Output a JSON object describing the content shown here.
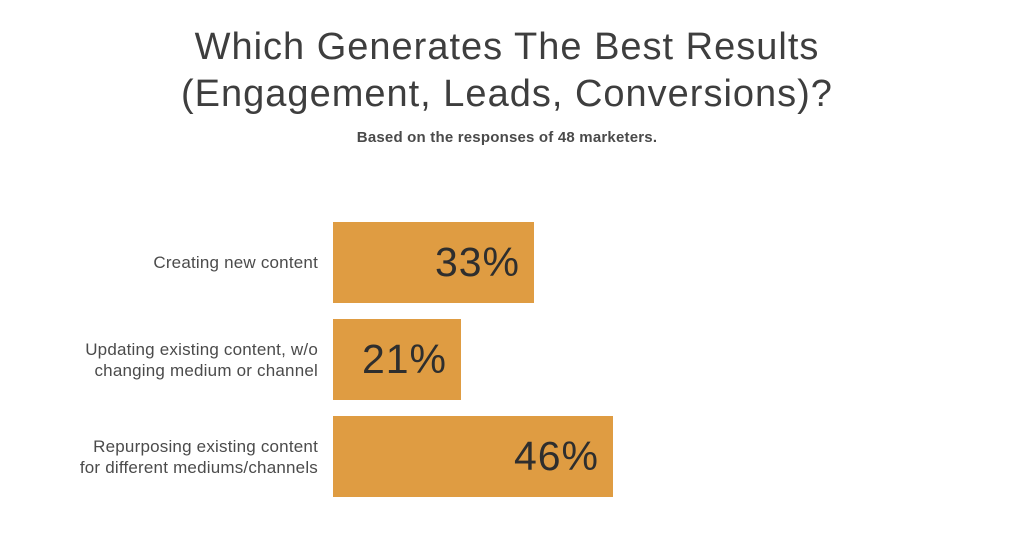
{
  "chart_data": {
    "type": "bar",
    "orientation": "horizontal",
    "title": "Which Generates The Best Results (Engagement, Leads, Conversions)?",
    "title_lines": [
      "Which Generates The Best Results",
      "(Engagement, Leads, Conversions)?"
    ],
    "subtitle": "Based on the responses of 48 marketers.",
    "categories": [
      "Creating new content",
      "Updating existing content, w/o changing medium or channel",
      "Repurposing existing content for different mediums/channels"
    ],
    "values": [
      33,
      21,
      46
    ],
    "value_labels": [
      "33%",
      "21%",
      "46%"
    ],
    "xlim": [
      0,
      100
    ],
    "grid": false,
    "legend": false,
    "bar_color": "#df9c42",
    "value_text_color": "#2e2e2e",
    "title_color": "#3e3e3e",
    "label_color": "#4b4b4b"
  },
  "bars": [
    {
      "label_lines": [
        "Creating new content"
      ],
      "value": 33,
      "value_label": "33%"
    },
    {
      "label_lines": [
        "Updating existing content, w/o",
        "changing medium or channel"
      ],
      "value": 21,
      "value_label": "21%"
    },
    {
      "label_lines": [
        "Repurposing existing content",
        "for different mediums/channels"
      ],
      "value": 46,
      "value_label": "46%"
    }
  ]
}
